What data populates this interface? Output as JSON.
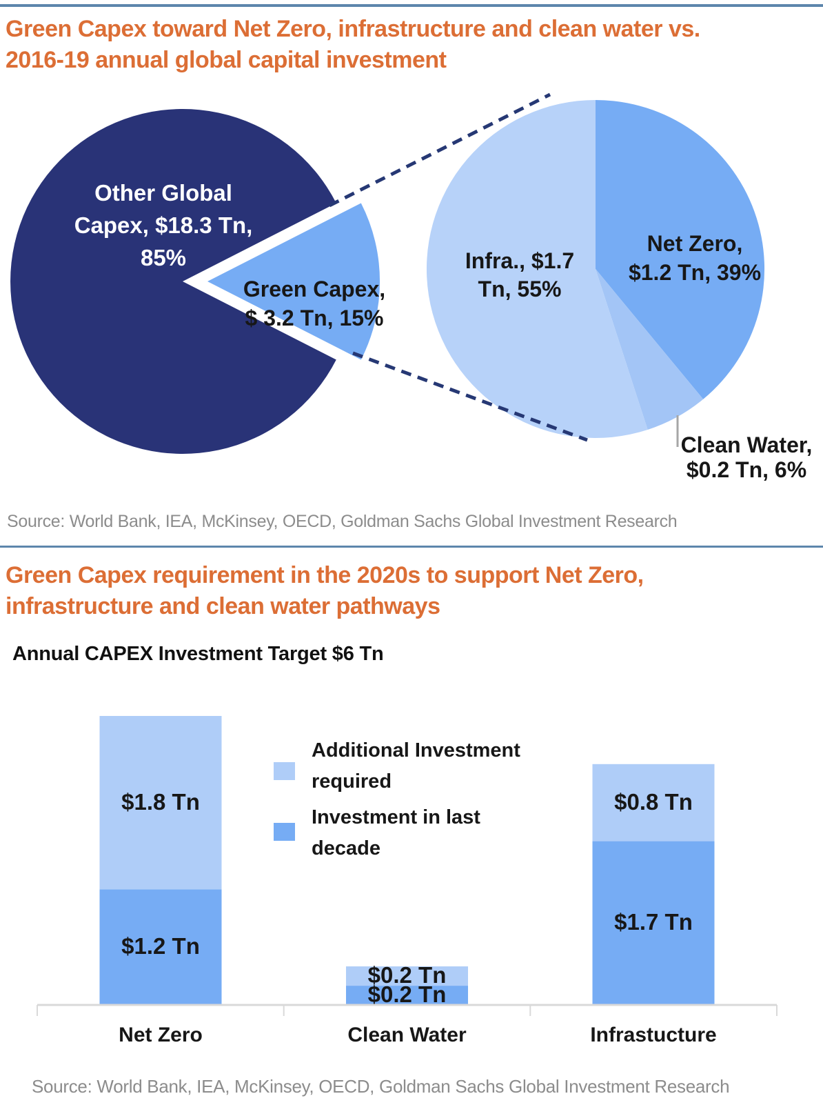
{
  "header": {
    "title_lines": [
      "Green Capex toward Net Zero, infrastructure and clean water vs.",
      "2016-19 annual global capital investment"
    ]
  },
  "pies_section": {
    "source": "Source: World Bank, IEA, McKinsey, OECD, Goldman Sachs Global Investment Research"
  },
  "bars_section": {
    "title_lines": [
      "Green Capex requirement in the 2020s to support Net Zero,",
      "infrastructure and clean water pathways"
    ],
    "heading": "Annual CAPEX Investment Target $6 Tn",
    "source": "Source: World Bank, IEA, McKinsey, OECD, Goldman Sachs Global Investment Research"
  },
  "colors": {
    "navy": "#293377",
    "medium_blue": "#76ACF4",
    "light_blue": "#AFCDF8",
    "infra_blue": "#B7D2F9",
    "clean_water_blue": "#A3C5F6",
    "orange": "#DC6E35",
    "rule_blue": "#5D86AC",
    "source_gray": "#8C8C8C",
    "axis_gray": "#D9D9D9",
    "dash_navy": "#263874",
    "callout_gray": "#A6A6A6",
    "text_dark": "#171717",
    "white": "#FFFFFF"
  },
  "chart_data": [
    {
      "type": "pie",
      "name": "global-capex-split",
      "title": "Green Capex toward Net Zero, infrastructure and clean water vs. 2016-19 annual global capital investment",
      "unit": "$ Tn, annual 2016-19",
      "slices": [
        {
          "label": "Other Global Capex, $18.3 Tn, 85%",
          "label_lines": [
            "Other Global",
            "Capex, $18.3 Tn,",
            "85%"
          ],
          "value_tn": 18.3,
          "percent": 85,
          "color_key": "navy",
          "exploded": false
        },
        {
          "label": "Green Capex, $ 3.2 Tn, 15%",
          "label_lines": [
            "Green Capex,",
            "$ 3.2 Tn, 15%"
          ],
          "value_tn": 3.2,
          "percent": 15,
          "color_key": "medium_blue",
          "exploded": true
        }
      ]
    },
    {
      "type": "pie",
      "name": "green-capex-breakdown",
      "start_angle_deg_from_top": 0,
      "direction": "clockwise",
      "unit": "$ Tn, annual 2016-19",
      "slices": [
        {
          "label": "Net Zero, $1.2 Tn, 39%",
          "label_lines": [
            "Net Zero,",
            "$1.2 Tn, 39%"
          ],
          "value_tn": 1.2,
          "percent": 39,
          "color_key": "medium_blue"
        },
        {
          "label": "Clean Water, $0.2 Tn, 6%",
          "label_lines": [
            "Clean Water,",
            "$0.2 Tn, 6%"
          ],
          "value_tn": 0.2,
          "percent": 6,
          "color_key": "clean_water_blue"
        },
        {
          "label": "Infra., $1.7 Tn, 55%",
          "label_lines": [
            "Infra., $1.7",
            "Tn, 55%"
          ],
          "value_tn": 1.7,
          "percent": 55,
          "color_key": "infra_blue"
        }
      ]
    },
    {
      "type": "bar",
      "name": "capex-requirement-2020s",
      "stacked": true,
      "title": "Annual CAPEX Investment Target $6 Tn",
      "unit": "$ Tn per year",
      "categories": [
        "Net Zero",
        "Clean Water",
        "Infrastucture"
      ],
      "series": [
        {
          "name": "Investment in last decade",
          "color_key": "medium_blue",
          "values": [
            1.2,
            0.2,
            1.7
          ],
          "value_labels": [
            "$1.2 Tn",
            "$0.2 Tn",
            "$1.7 Tn"
          ]
        },
        {
          "name": "Additional Investment required",
          "color_key": "light_blue",
          "values": [
            1.8,
            0.2,
            0.8
          ],
          "value_labels": [
            "$1.8 Tn",
            "$0.2 Tn",
            "$0.8 Tn"
          ]
        }
      ],
      "legend": [
        {
          "label_lines": [
            "Additional Investment",
            "required"
          ],
          "color_key": "light_blue"
        },
        {
          "label_lines": [
            "Investment in last",
            "decade"
          ],
          "color_key": "medium_blue"
        }
      ],
      "ylim": [
        0,
        3
      ],
      "gridlines": false,
      "legend_position": "center-between-bars"
    }
  ]
}
